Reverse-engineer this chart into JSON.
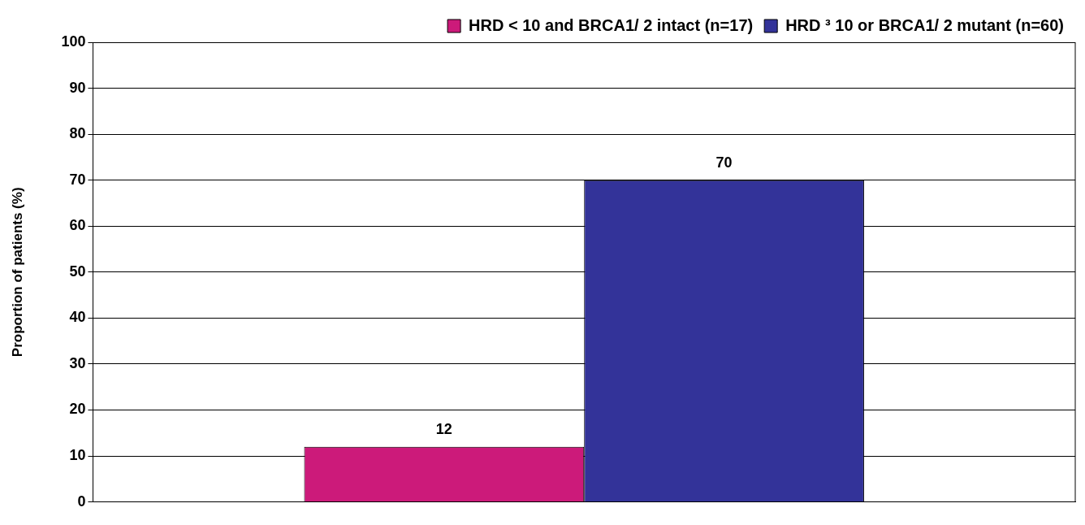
{
  "chart_data": {
    "type": "bar",
    "ylabel": "Proportion of patients (%)",
    "categories": [
      null
    ],
    "series": [
      {
        "name": "HRD < 10 and BRCA1/ 2 intact (n=17)",
        "color": "#cc1a7a",
        "values": [
          12
        ]
      },
      {
        "name": "HRD ³ 10 or BRCA1/ 2 mutant (n=60)",
        "color": "#333399",
        "values": [
          70
        ]
      }
    ],
    "ylim": [
      0,
      100
    ],
    "yticks": [
      0,
      10,
      20,
      30,
      40,
      50,
      60,
      70,
      80,
      90,
      100
    ],
    "grid": "y",
    "legend": "top",
    "data_labels": true
  }
}
